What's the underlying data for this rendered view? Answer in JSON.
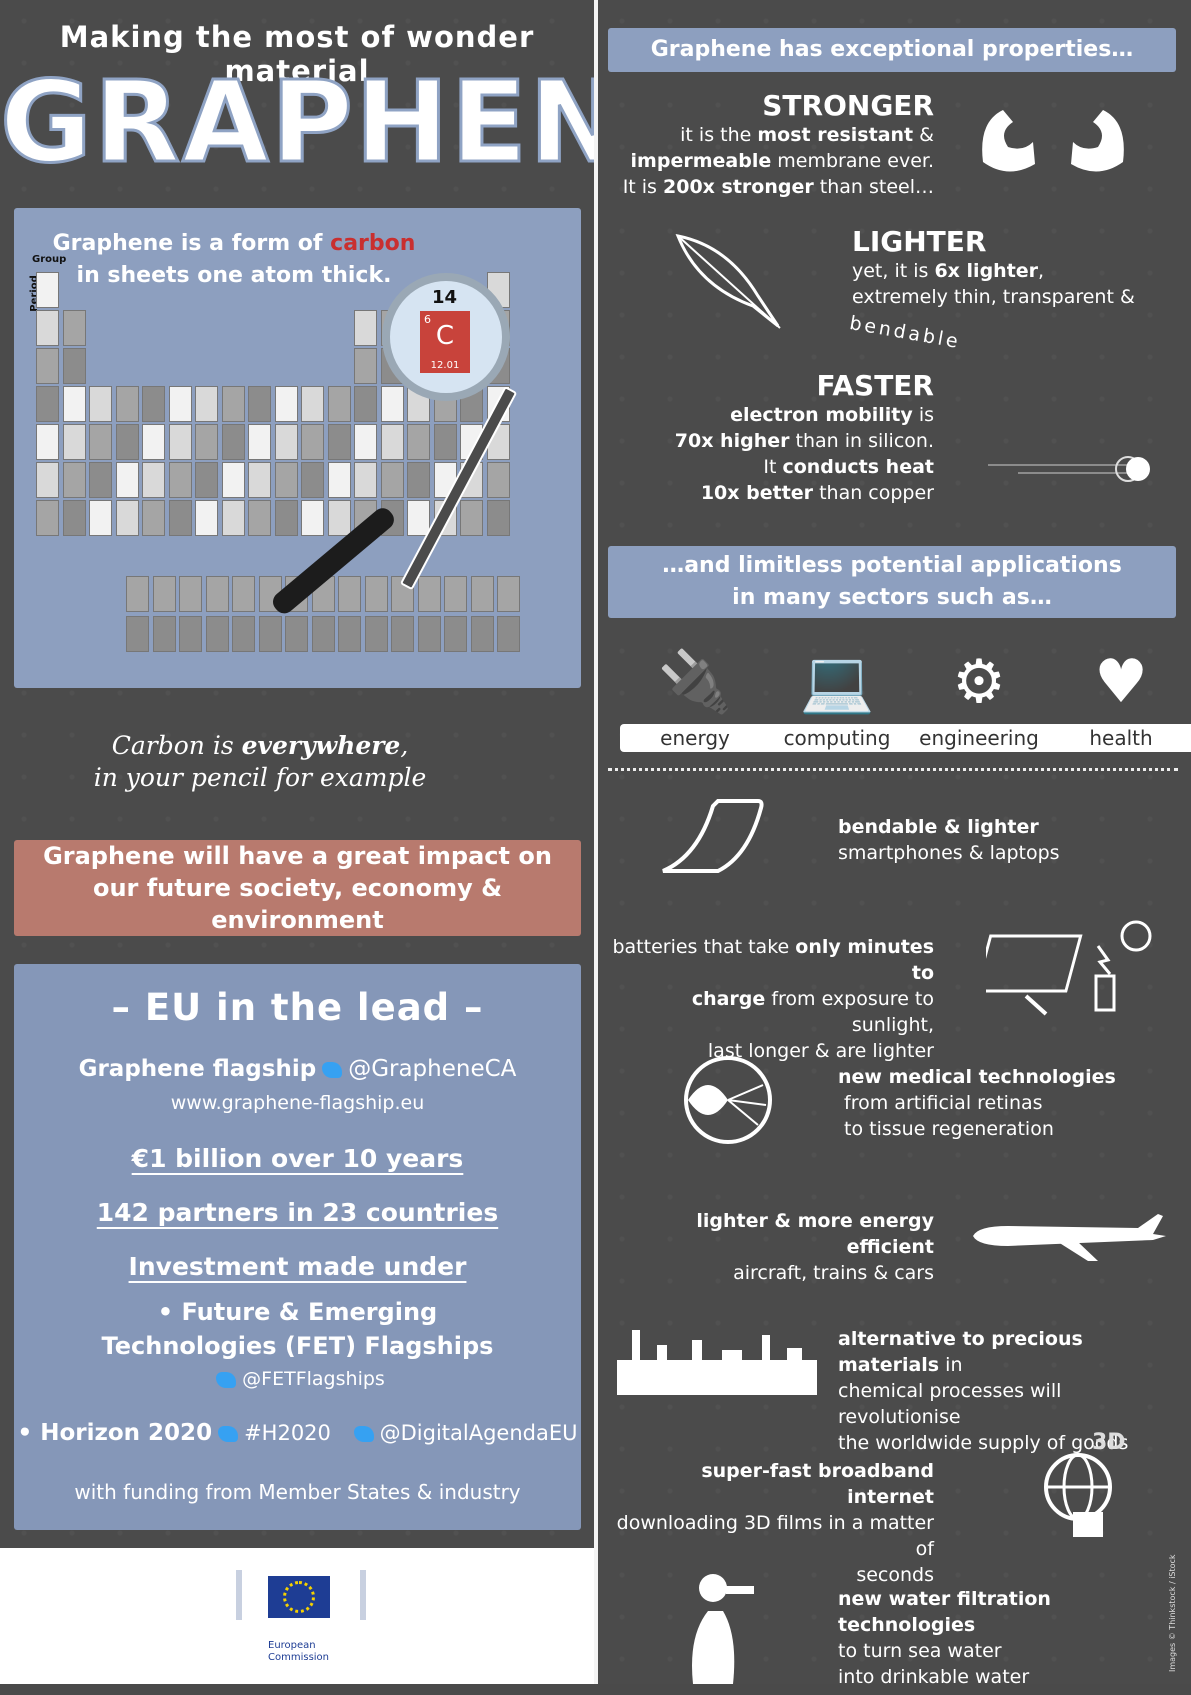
{
  "header": {
    "subtitle": "Making the most of wonder material",
    "title": "GRAPHENE"
  },
  "ptable": {
    "caption_part1": "Graphene is a form of ",
    "caption_highlight": "carbon",
    "caption_part2": "in sheets one atom thick.",
    "group_label": "Group",
    "period_label": "Period",
    "lens_group": "14",
    "lens_element": "C",
    "lens_number": "6",
    "lens_mass": "12.01"
  },
  "pencil_note": {
    "line1_a": "Carbon is ",
    "line1_b": "everywhere",
    "line1_c": ",",
    "line2": "in your pencil for example"
  },
  "impact": {
    "line1": "Graphene will have a great impact on",
    "line2": "our future society, economy & environment"
  },
  "eu": {
    "title": "– EU in the lead –",
    "flagship_name": "Graphene flagship",
    "flagship_handle": "@GrapheneCA",
    "flagship_url": "www.graphene-flagship.eu",
    "funding": "€1 billion over 10 years",
    "partners": "142 partners in 23 countries",
    "investment": "Investment made under",
    "fet_line1": "• Future & Emerging",
    "fet_line2": "Technologies (FET) Flagships",
    "fet_handle": "@FETFlagships",
    "horizon": "• Horizon 2020",
    "horizon_tag": "#H2020",
    "digital_handle": "@DigitalAgendaEU",
    "member_states": "with funding from Member States & industry"
  },
  "footer": {
    "org_line1": "European",
    "org_line2": "Commission"
  },
  "properties": {
    "banner": "Graphene has exceptional properties…",
    "stronger": {
      "title": "STRONGER",
      "l1a": "it is the ",
      "l1b": "most resistant",
      "l1c": " &",
      "l2a": "impermeable",
      "l2b": " membrane ever.",
      "l3a": "It is ",
      "l3b": "200x stronger",
      "l3c": " than steel…"
    },
    "lighter": {
      "title": "LIGHTER",
      "l1a": "yet, it is ",
      "l1b": "6x lighter",
      "l1c": ",",
      "l2": "extremely thin, transparent &",
      "l3": "bendable"
    },
    "faster": {
      "title": "FASTER",
      "l1a": "electron mobility",
      "l1b": " is",
      "l2a": "70x higher",
      "l2b": " than in silicon.",
      "l3a": "It ",
      "l3b": "conducts heat",
      "l4a": "10x better",
      "l4b": " than copper"
    }
  },
  "applications": {
    "banner_line1": "…and limitless potential applications",
    "banner_line2": "in many sectors such as…",
    "sectors": [
      {
        "label": "energy",
        "icon": "plug-icon"
      },
      {
        "label": "computing",
        "icon": "laptop-icon"
      },
      {
        "label": "engineering",
        "icon": "gears-icon"
      },
      {
        "label": "health",
        "icon": "heart-icon"
      }
    ],
    "items": {
      "phones_b": "bendable & lighter",
      "phones_r": "smartphones & laptops",
      "battery_1a": "batteries that take ",
      "battery_1b": "only minutes to",
      "battery_2a": "charge",
      "battery_2b": " from exposure to sunlight,",
      "battery_3": "last longer & are lighter",
      "medical_b": "new medical technologies",
      "medical_2": " from artificial retinas",
      "medical_3": " to tissue regeneration",
      "aircraft_b": "lighter & more energy efficient",
      "aircraft_2": "aircraft, trains & cars",
      "chem_1b": "alternative to precious materials",
      "chem_1r": " in",
      "chem_2": "chemical processes will revolutionise",
      "chem_3": "the worldwide supply of goods",
      "web_b": "super-fast broadband internet",
      "web_2": "downloading 3D films in a matter of",
      "web_3": "seconds",
      "web_badge": "3D",
      "water_b": "new water filtration technologies",
      "water_2": "to turn sea water",
      "water_3": "into drinkable water"
    }
  },
  "credit": "Images © Thinkstock / iStock"
}
